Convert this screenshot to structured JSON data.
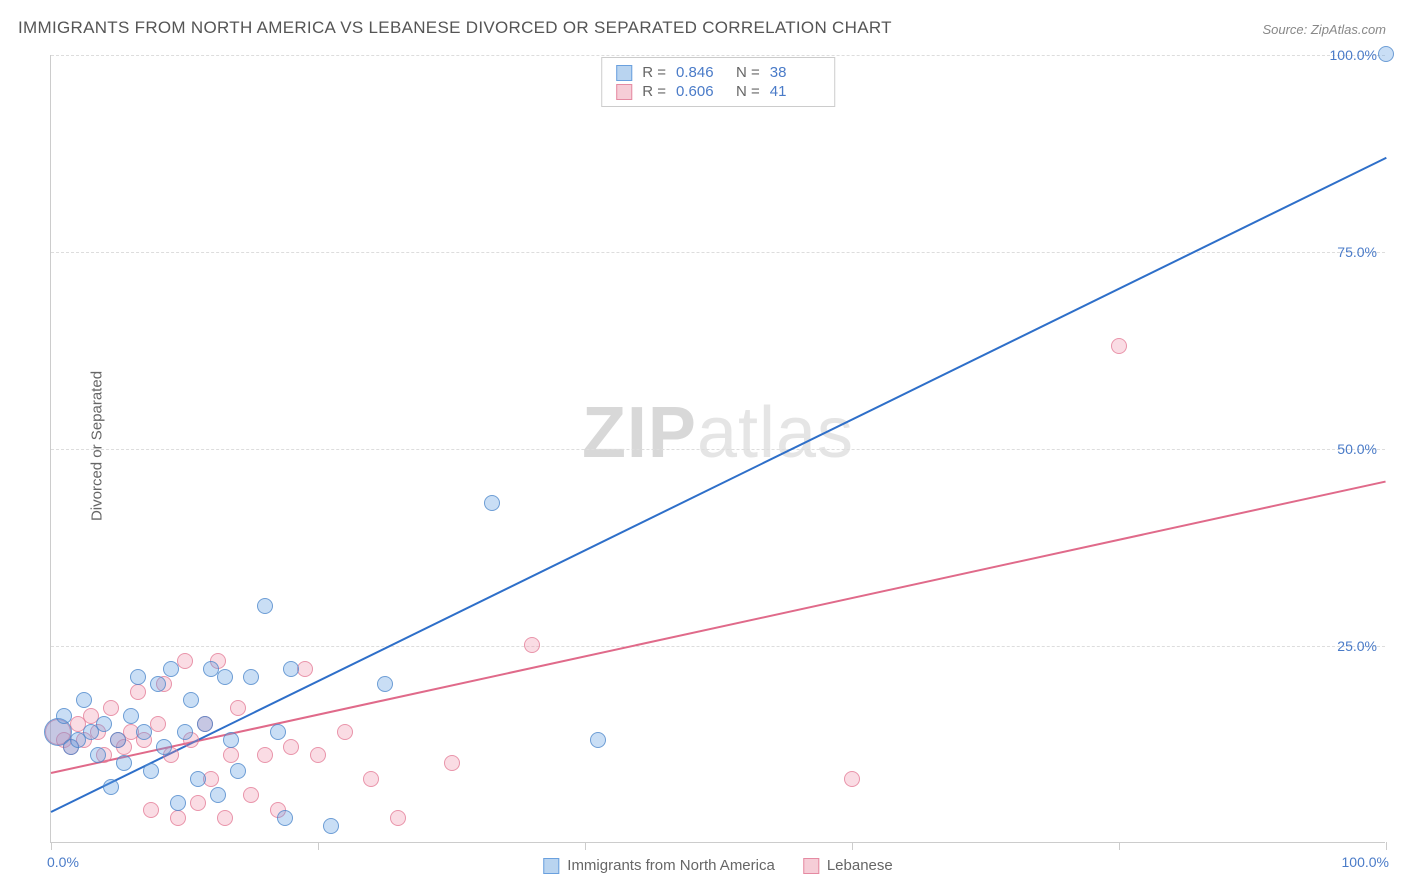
{
  "title": "IMMIGRANTS FROM NORTH AMERICA VS LEBANESE DIVORCED OR SEPARATED CORRELATION CHART",
  "source": "Source: ZipAtlas.com",
  "ylabel": "Divorced or Separated",
  "watermark": {
    "zip": "ZIP",
    "atlas": "atlas"
  },
  "chart": {
    "type": "scatter",
    "xlim": [
      0,
      100
    ],
    "ylim": [
      0,
      100
    ],
    "xticks": [
      0,
      20,
      40,
      60,
      80,
      100
    ],
    "yticks": [
      25,
      50,
      75,
      100
    ],
    "xtick_labels": {
      "0": "0.0%",
      "100": "100.0%"
    },
    "ytick_labels": {
      "25": "25.0%",
      "50": "50.0%",
      "75": "75.0%",
      "100": "100.0%"
    },
    "grid_color": "#dddddd",
    "axis_color": "#cccccc",
    "background_color": "#ffffff",
    "tick_label_color": "#4a7bc8",
    "point_radius": 8,
    "large_point_radius": 14
  },
  "series": {
    "blue": {
      "label": "Immigrants from North America",
      "fill": "rgba(100,160,225,0.35)",
      "stroke": "rgba(70,130,200,0.7)",
      "swatch_fill": "#b9d4f0",
      "swatch_stroke": "#6aa0de",
      "R": "0.846",
      "N": "38",
      "regression": {
        "x1": 0,
        "y1": 4,
        "x2": 100,
        "y2": 87,
        "color": "#2e6fc9",
        "width": 2
      },
      "points": [
        {
          "x": 0.5,
          "y": 14,
          "r": 14
        },
        {
          "x": 1,
          "y": 16
        },
        {
          "x": 1.5,
          "y": 12
        },
        {
          "x": 2,
          "y": 13
        },
        {
          "x": 2.5,
          "y": 18
        },
        {
          "x": 3,
          "y": 14
        },
        {
          "x": 3.5,
          "y": 11
        },
        {
          "x": 4,
          "y": 15
        },
        {
          "x": 4.5,
          "y": 7
        },
        {
          "x": 5,
          "y": 13
        },
        {
          "x": 5.5,
          "y": 10
        },
        {
          "x": 6,
          "y": 16
        },
        {
          "x": 6.5,
          "y": 21
        },
        {
          "x": 7,
          "y": 14
        },
        {
          "x": 7.5,
          "y": 9
        },
        {
          "x": 8,
          "y": 20
        },
        {
          "x": 8.5,
          "y": 12
        },
        {
          "x": 9,
          "y": 22
        },
        {
          "x": 9.5,
          "y": 5
        },
        {
          "x": 10,
          "y": 14
        },
        {
          "x": 10.5,
          "y": 18
        },
        {
          "x": 11,
          "y": 8
        },
        {
          "x": 11.5,
          "y": 15
        },
        {
          "x": 12,
          "y": 22
        },
        {
          "x": 12.5,
          "y": 6
        },
        {
          "x": 13,
          "y": 21
        },
        {
          "x": 13.5,
          "y": 13
        },
        {
          "x": 14,
          "y": 9
        },
        {
          "x": 15,
          "y": 21
        },
        {
          "x": 16,
          "y": 30
        },
        {
          "x": 17,
          "y": 14
        },
        {
          "x": 17.5,
          "y": 3
        },
        {
          "x": 18,
          "y": 22
        },
        {
          "x": 21,
          "y": 2
        },
        {
          "x": 25,
          "y": 20
        },
        {
          "x": 33,
          "y": 43
        },
        {
          "x": 41,
          "y": 13
        },
        {
          "x": 100,
          "y": 100
        }
      ]
    },
    "pink": {
      "label": "Lebanese",
      "fill": "rgba(240,140,165,0.3)",
      "stroke": "rgba(225,110,140,0.65)",
      "swatch_fill": "#f6cdd7",
      "swatch_stroke": "#e58aa2",
      "R": "0.606",
      "N": "41",
      "regression": {
        "x1": 0,
        "y1": 9,
        "x2": 100,
        "y2": 46,
        "color": "#e06a8a",
        "width": 2
      },
      "points": [
        {
          "x": 0.5,
          "y": 14,
          "r": 13
        },
        {
          "x": 1,
          "y": 13
        },
        {
          "x": 1.5,
          "y": 12
        },
        {
          "x": 2,
          "y": 15
        },
        {
          "x": 2.5,
          "y": 13
        },
        {
          "x": 3,
          "y": 16
        },
        {
          "x": 3.5,
          "y": 14
        },
        {
          "x": 4,
          "y": 11
        },
        {
          "x": 4.5,
          "y": 17
        },
        {
          "x": 5,
          "y": 13
        },
        {
          "x": 5.5,
          "y": 12
        },
        {
          "x": 6,
          "y": 14
        },
        {
          "x": 6.5,
          "y": 19
        },
        {
          "x": 7,
          "y": 13
        },
        {
          "x": 7.5,
          "y": 4
        },
        {
          "x": 8,
          "y": 15
        },
        {
          "x": 8.5,
          "y": 20
        },
        {
          "x": 9,
          "y": 11
        },
        {
          "x": 9.5,
          "y": 3
        },
        {
          "x": 10,
          "y": 23
        },
        {
          "x": 10.5,
          "y": 13
        },
        {
          "x": 11,
          "y": 5
        },
        {
          "x": 11.5,
          "y": 15
        },
        {
          "x": 12,
          "y": 8
        },
        {
          "x": 12.5,
          "y": 23
        },
        {
          "x": 13,
          "y": 3
        },
        {
          "x": 13.5,
          "y": 11
        },
        {
          "x": 14,
          "y": 17
        },
        {
          "x": 15,
          "y": 6
        },
        {
          "x": 16,
          "y": 11
        },
        {
          "x": 17,
          "y": 4
        },
        {
          "x": 18,
          "y": 12
        },
        {
          "x": 19,
          "y": 22
        },
        {
          "x": 20,
          "y": 11
        },
        {
          "x": 22,
          "y": 14
        },
        {
          "x": 24,
          "y": 8
        },
        {
          "x": 26,
          "y": 3
        },
        {
          "x": 30,
          "y": 10
        },
        {
          "x": 36,
          "y": 25
        },
        {
          "x": 60,
          "y": 8
        },
        {
          "x": 80,
          "y": 63
        }
      ]
    }
  },
  "legend_top": {
    "R_label": "R =",
    "N_label": "N ="
  },
  "legend_bottom_labels": [
    "Immigrants from North America",
    "Lebanese"
  ]
}
